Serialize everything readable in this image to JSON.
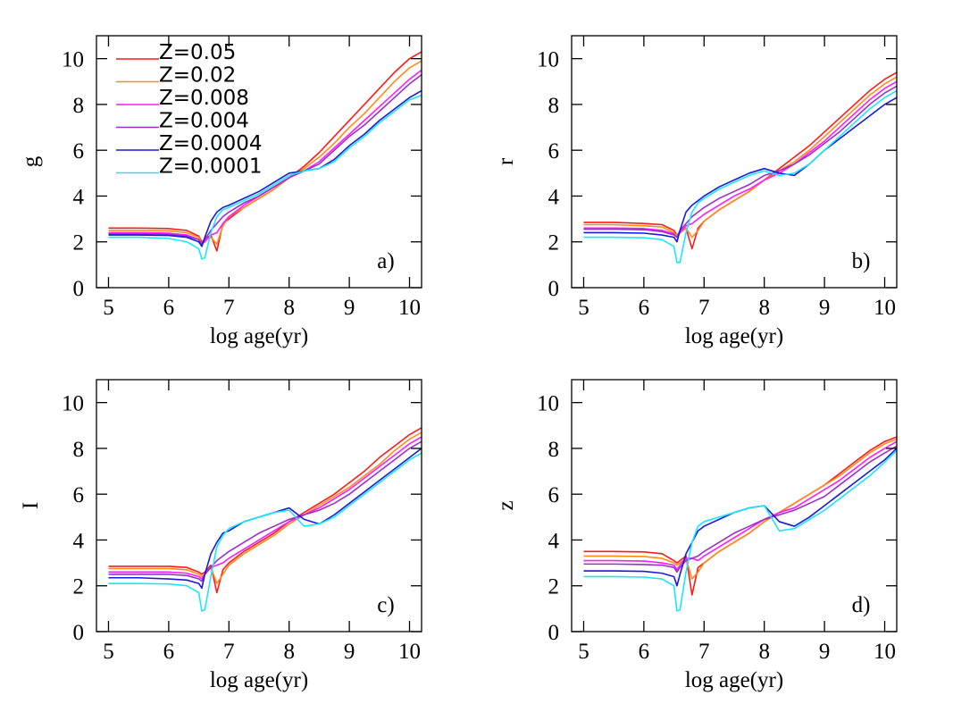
{
  "chart_data": [
    {
      "type": "line",
      "xlabel": "log age(yr)",
      "ylabel": "g",
      "annotation": "a)",
      "legend": "upper left",
      "xlim": [
        4.8,
        10.2
      ],
      "ylim": [
        0,
        11
      ],
      "xticks": [
        5,
        6,
        7,
        8,
        9,
        10
      ],
      "yticks": [
        0,
        2,
        4,
        6,
        8,
        10
      ],
      "x": [
        5,
        5.5,
        6,
        6.3,
        6.5,
        6.55,
        6.6,
        6.7,
        6.8,
        6.9,
        7,
        7.25,
        7.5,
        7.75,
        8,
        8.25,
        8.5,
        8.75,
        9,
        9.25,
        9.5,
        9.75,
        10,
        10.2
      ],
      "series": [
        {
          "name": "Z=0.05",
          "color": "#ff1a1a",
          "values": [
            2.6,
            2.6,
            2.58,
            2.5,
            2.25,
            2.0,
            2.1,
            2.3,
            1.6,
            2.8,
            3.0,
            3.5,
            3.9,
            4.3,
            4.8,
            5.3,
            5.9,
            6.6,
            7.3,
            8.0,
            8.7,
            9.4,
            10.0,
            10.3
          ]
        },
        {
          "name": "Z=0.02",
          "color": "#ff8c1a",
          "values": [
            2.5,
            2.5,
            2.48,
            2.4,
            2.2,
            1.9,
            2.1,
            2.2,
            1.9,
            2.7,
            3.1,
            3.5,
            3.9,
            4.3,
            4.8,
            5.2,
            5.7,
            6.3,
            7.0,
            7.6,
            8.3,
            9.0,
            9.6,
            9.9
          ]
        },
        {
          "name": "Z=0.008",
          "color": "#ff1aff",
          "values": [
            2.4,
            2.4,
            2.38,
            2.3,
            2.1,
            1.9,
            2.0,
            2.3,
            2.4,
            2.8,
            3.1,
            3.6,
            4.0,
            4.4,
            4.8,
            5.1,
            5.5,
            6.1,
            6.7,
            7.3,
            7.9,
            8.5,
            9.1,
            9.5
          ]
        },
        {
          "name": "Z=0.004",
          "color": "#9b30c8",
          "values": [
            2.35,
            2.35,
            2.33,
            2.25,
            2.1,
            1.9,
            2.1,
            2.5,
            2.8,
            3.1,
            3.3,
            3.7,
            4.0,
            4.4,
            4.8,
            5.1,
            5.4,
            6.0,
            6.6,
            7.1,
            7.7,
            8.3,
            8.9,
            9.3
          ]
        },
        {
          "name": "Z=0.0004",
          "color": "#1a1ad9",
          "values": [
            2.3,
            2.3,
            2.28,
            2.2,
            2.0,
            1.8,
            2.2,
            2.9,
            3.3,
            3.5,
            3.6,
            3.9,
            4.2,
            4.6,
            5.0,
            5.1,
            5.2,
            5.6,
            6.2,
            6.7,
            7.3,
            7.8,
            8.3,
            8.6
          ]
        },
        {
          "name": "Z=0.0001",
          "color": "#1ae6ff",
          "values": [
            2.2,
            2.2,
            2.15,
            2.0,
            1.7,
            1.25,
            1.3,
            2.4,
            3.1,
            3.4,
            3.5,
            3.8,
            4.1,
            4.5,
            4.9,
            5.1,
            5.2,
            5.5,
            6.1,
            6.6,
            7.2,
            7.7,
            8.2,
            8.4
          ]
        }
      ]
    },
    {
      "type": "line",
      "xlabel": "log age(yr)",
      "ylabel": "r",
      "annotation": "b)",
      "xlim": [
        4.8,
        10.2
      ],
      "ylim": [
        0,
        11
      ],
      "xticks": [
        5,
        6,
        7,
        8,
        9,
        10
      ],
      "yticks": [
        0,
        2,
        4,
        6,
        8,
        10
      ],
      "x": [
        5,
        5.5,
        6,
        6.3,
        6.5,
        6.55,
        6.6,
        6.7,
        6.8,
        6.9,
        7,
        7.25,
        7.5,
        7.75,
        8,
        8.25,
        8.5,
        8.75,
        9,
        9.25,
        9.5,
        9.75,
        10,
        10.2
      ],
      "series": [
        {
          "color": "#ff1a1a",
          "values": [
            2.85,
            2.85,
            2.8,
            2.75,
            2.5,
            2.3,
            2.4,
            2.6,
            1.7,
            2.6,
            2.9,
            3.4,
            3.8,
            4.2,
            4.7,
            5.2,
            5.7,
            6.2,
            6.8,
            7.4,
            8.0,
            8.6,
            9.1,
            9.4
          ]
        },
        {
          "color": "#ff8c1a",
          "values": [
            2.75,
            2.75,
            2.7,
            2.65,
            2.4,
            2.3,
            2.4,
            2.6,
            2.2,
            2.5,
            2.9,
            3.4,
            3.8,
            4.2,
            4.7,
            5.1,
            5.5,
            6.0,
            6.6,
            7.2,
            7.8,
            8.4,
            8.9,
            9.2
          ]
        },
        {
          "color": "#ff1aff",
          "values": [
            2.6,
            2.6,
            2.58,
            2.5,
            2.35,
            2.2,
            2.4,
            2.7,
            2.8,
            3.0,
            3.2,
            3.6,
            4.0,
            4.3,
            4.7,
            5.0,
            5.4,
            5.9,
            6.4,
            7.0,
            7.6,
            8.2,
            8.7,
            9.0
          ]
        },
        {
          "color": "#9b30c8",
          "values": [
            2.55,
            2.55,
            2.53,
            2.45,
            2.3,
            2.2,
            2.5,
            2.8,
            3.1,
            3.3,
            3.5,
            3.9,
            4.2,
            4.5,
            4.9,
            5.1,
            5.4,
            5.8,
            6.3,
            6.8,
            7.4,
            8.0,
            8.5,
            8.8
          ]
        },
        {
          "color": "#1a1ad9",
          "values": [
            2.4,
            2.4,
            2.38,
            2.3,
            2.2,
            2.0,
            2.5,
            3.3,
            3.6,
            3.8,
            4.0,
            4.4,
            4.7,
            5.0,
            5.2,
            5.0,
            4.9,
            5.4,
            6.0,
            6.5,
            7.0,
            7.5,
            8.0,
            8.3
          ]
        },
        {
          "color": "#1ae6ff",
          "values": [
            2.2,
            2.2,
            2.18,
            2.1,
            1.8,
            1.1,
            1.1,
            2.4,
            3.3,
            3.7,
            3.9,
            4.3,
            4.6,
            4.9,
            5.1,
            4.9,
            5.0,
            5.4,
            6.0,
            6.6,
            7.2,
            7.8,
            8.3,
            8.6
          ]
        }
      ]
    },
    {
      "type": "line",
      "xlabel": "log age(yr)",
      "ylabel": "I",
      "annotation": "c)",
      "xlim": [
        4.8,
        10.2
      ],
      "ylim": [
        0,
        11
      ],
      "xticks": [
        5,
        6,
        7,
        8,
        9,
        10
      ],
      "yticks": [
        0,
        2,
        4,
        6,
        8,
        10
      ],
      "x": [
        5,
        5.5,
        6,
        6.3,
        6.5,
        6.55,
        6.6,
        6.7,
        6.8,
        6.9,
        7,
        7.25,
        7.5,
        7.75,
        8,
        8.25,
        8.5,
        8.75,
        9,
        9.25,
        9.5,
        9.75,
        10,
        10.2
      ],
      "series": [
        {
          "color": "#ff1a1a",
          "values": [
            2.85,
            2.85,
            2.85,
            2.8,
            2.6,
            2.5,
            2.6,
            2.9,
            1.7,
            2.7,
            3.0,
            3.5,
            3.9,
            4.3,
            4.8,
            5.2,
            5.6,
            6.0,
            6.5,
            7.0,
            7.6,
            8.1,
            8.6,
            8.9
          ]
        },
        {
          "color": "#ff8c1a",
          "values": [
            2.75,
            2.75,
            2.75,
            2.7,
            2.5,
            2.4,
            2.5,
            2.8,
            2.1,
            2.5,
            2.9,
            3.4,
            3.8,
            4.2,
            4.7,
            5.1,
            5.5,
            5.9,
            6.3,
            6.8,
            7.3,
            7.9,
            8.4,
            8.7
          ]
        },
        {
          "color": "#ff1aff",
          "values": [
            2.6,
            2.6,
            2.6,
            2.55,
            2.4,
            2.3,
            2.5,
            2.8,
            2.9,
            3.0,
            3.2,
            3.6,
            4.0,
            4.4,
            4.8,
            5.1,
            5.4,
            5.8,
            6.2,
            6.7,
            7.2,
            7.7,
            8.2,
            8.5
          ]
        },
        {
          "color": "#9b30c8",
          "values": [
            2.5,
            2.5,
            2.5,
            2.45,
            2.3,
            2.2,
            2.5,
            2.8,
            3.1,
            3.3,
            3.5,
            3.9,
            4.3,
            4.6,
            4.9,
            5.1,
            5.3,
            5.6,
            6.0,
            6.5,
            7.0,
            7.5,
            8.0,
            8.3
          ]
        },
        {
          "color": "#1a1ad9",
          "values": [
            2.35,
            2.35,
            2.3,
            2.25,
            2.1,
            1.9,
            2.5,
            3.4,
            3.9,
            4.3,
            4.4,
            4.8,
            5.0,
            5.2,
            5.4,
            4.9,
            4.7,
            5.1,
            5.6,
            6.1,
            6.6,
            7.1,
            7.6,
            8.0
          ]
        },
        {
          "color": "#1ae6ff",
          "values": [
            2.1,
            2.1,
            2.08,
            2.0,
            1.7,
            0.9,
            0.95,
            2.4,
            3.7,
            4.2,
            4.5,
            4.8,
            5.0,
            5.2,
            5.3,
            4.6,
            4.7,
            5.0,
            5.5,
            6.0,
            6.5,
            7.0,
            7.5,
            7.8
          ]
        }
      ]
    },
    {
      "type": "line",
      "xlabel": "log age(yr)",
      "ylabel": "z",
      "annotation": "d)",
      "xlim": [
        4.8,
        10.2
      ],
      "ylim": [
        0,
        11
      ],
      "xticks": [
        5,
        6,
        7,
        8,
        9,
        10
      ],
      "yticks": [
        0,
        2,
        4,
        6,
        8,
        10
      ],
      "x": [
        5,
        5.5,
        6,
        6.3,
        6.5,
        6.55,
        6.6,
        6.7,
        6.8,
        6.9,
        7,
        7.25,
        7.5,
        7.75,
        8,
        8.25,
        8.5,
        8.75,
        9,
        9.25,
        9.5,
        9.75,
        10,
        10.2
      ],
      "series": [
        {
          "color": "#ff1a1a",
          "values": [
            3.5,
            3.5,
            3.48,
            3.4,
            3.1,
            3.0,
            3.1,
            3.3,
            1.6,
            2.8,
            3.0,
            3.5,
            3.9,
            4.3,
            4.8,
            5.2,
            5.6,
            6.0,
            6.4,
            6.9,
            7.4,
            7.9,
            8.3,
            8.5
          ]
        },
        {
          "color": "#ff8c1a",
          "values": [
            3.3,
            3.3,
            3.28,
            3.2,
            3.0,
            2.9,
            3.0,
            3.2,
            2.3,
            2.6,
            3.0,
            3.5,
            3.9,
            4.3,
            4.8,
            5.2,
            5.6,
            6.0,
            6.4,
            6.8,
            7.3,
            7.8,
            8.2,
            8.4
          ]
        },
        {
          "color": "#ff1aff",
          "values": [
            3.1,
            3.1,
            3.08,
            3.0,
            2.9,
            2.7,
            2.9,
            3.2,
            3.2,
            3.1,
            3.3,
            3.7,
            4.1,
            4.5,
            4.9,
            5.2,
            5.4,
            5.8,
            6.2,
            6.6,
            7.1,
            7.6,
            8.0,
            8.3
          ]
        },
        {
          "color": "#9b30c8",
          "values": [
            2.95,
            2.95,
            2.93,
            2.9,
            2.8,
            2.6,
            2.8,
            3.1,
            3.2,
            3.3,
            3.5,
            3.9,
            4.3,
            4.6,
            4.9,
            5.1,
            5.3,
            5.6,
            5.9,
            6.4,
            6.9,
            7.4,
            7.8,
            8.1
          ]
        },
        {
          "color": "#1a1ad9",
          "values": [
            2.65,
            2.65,
            2.63,
            2.55,
            2.4,
            2.0,
            2.5,
            3.4,
            3.9,
            4.4,
            4.6,
            4.9,
            5.2,
            5.4,
            5.5,
            4.8,
            4.6,
            5.0,
            5.5,
            6.0,
            6.5,
            7.0,
            7.5,
            8.0
          ]
        },
        {
          "color": "#1ae6ff",
          "values": [
            2.4,
            2.4,
            2.38,
            2.3,
            2.0,
            0.9,
            0.95,
            2.6,
            3.9,
            4.6,
            4.8,
            5.0,
            5.2,
            5.4,
            5.5,
            4.4,
            4.5,
            4.9,
            5.3,
            5.8,
            6.3,
            6.8,
            7.4,
            7.9
          ]
        }
      ]
    }
  ]
}
